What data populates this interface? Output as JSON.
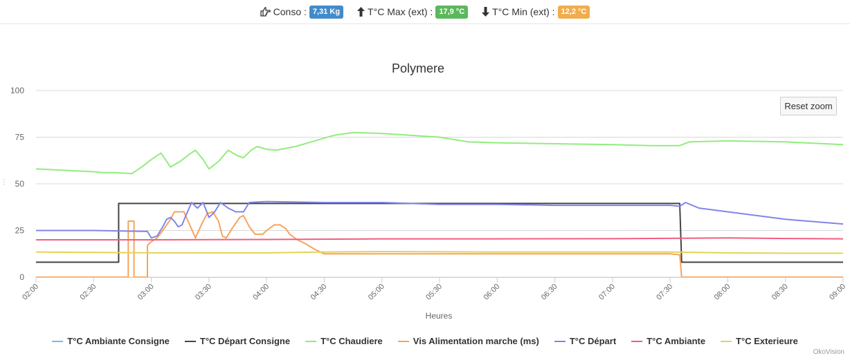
{
  "header": {
    "conso": {
      "label": "Conso :",
      "value": "7,31 Kg",
      "color": "#428bca",
      "icon": "hand-point-right-icon"
    },
    "tmax": {
      "label": "T°C Max (ext) :",
      "value": "17,9 °C",
      "color": "#5cb85c",
      "icon": "arrow-up-icon"
    },
    "tmin": {
      "label": "T°C Min (ext) :",
      "value": "12,2 °C",
      "color": "#f0ad4e",
      "icon": "arrow-down-icon"
    }
  },
  "reset_zoom_label": "Reset zoom",
  "credit": "OkoVision",
  "side_dots": "⋮",
  "chart_data": {
    "type": "line",
    "title": "Polymere",
    "xlabel": "Heures",
    "ylabel": "",
    "x_ticks": [
      "02:00",
      "02:30",
      "03:00",
      "03:30",
      "04:00",
      "04:30",
      "05:00",
      "05:30",
      "06:00",
      "06:30",
      "07:00",
      "07:30",
      "08:00",
      "08:30",
      "09:00"
    ],
    "y_ticks": [
      0,
      25,
      50,
      75,
      100
    ],
    "ylim": [
      0,
      100
    ],
    "grid": true,
    "legend_position": "bottom",
    "series": [
      {
        "name": "T°C Ambiante Consigne",
        "color": "#7cb5ec",
        "points": []
      },
      {
        "name": "T°C Départ Consigne",
        "color": "#434348",
        "points": [
          [
            "02:00",
            8
          ],
          [
            "02:43",
            8
          ],
          [
            "02:43",
            39.5
          ],
          [
            "07:35",
            39.5
          ],
          [
            "07:36",
            8
          ],
          [
            "09:00",
            8
          ]
        ]
      },
      {
        "name": "T°C Chaudiere",
        "color": "#90ed7d",
        "points": [
          [
            "02:00",
            58
          ],
          [
            "02:30",
            56.5
          ],
          [
            "02:35",
            56
          ],
          [
            "02:40",
            56
          ],
          [
            "02:50",
            55.5
          ],
          [
            "02:55",
            59
          ],
          [
            "03:00",
            63
          ],
          [
            "03:05",
            66.5
          ],
          [
            "03:08",
            62
          ],
          [
            "03:10",
            59
          ],
          [
            "03:15",
            62
          ],
          [
            "03:20",
            66
          ],
          [
            "03:23",
            68
          ],
          [
            "03:27",
            63
          ],
          [
            "03:30",
            58
          ],
          [
            "03:35",
            62
          ],
          [
            "03:40",
            68
          ],
          [
            "03:45",
            65
          ],
          [
            "03:48",
            64
          ],
          [
            "03:52",
            68
          ],
          [
            "03:55",
            70
          ],
          [
            "04:00",
            68.5
          ],
          [
            "04:05",
            68
          ],
          [
            "04:15",
            70
          ],
          [
            "04:25",
            73
          ],
          [
            "04:35",
            76
          ],
          [
            "04:45",
            77.5
          ],
          [
            "05:00",
            77
          ],
          [
            "05:30",
            75
          ],
          [
            "05:45",
            72.5
          ],
          [
            "06:00",
            72
          ],
          [
            "06:30",
            71.5
          ],
          [
            "07:00",
            71
          ],
          [
            "07:20",
            70.5
          ],
          [
            "07:35",
            70.5
          ],
          [
            "07:40",
            72.5
          ],
          [
            "08:00",
            73
          ],
          [
            "08:30",
            72.5
          ],
          [
            "09:00",
            71
          ]
        ]
      },
      {
        "name": "Vis Alimentation marche (ms)",
        "color": "#f7a35c",
        "points": [
          [
            "02:00",
            0
          ],
          [
            "02:48",
            0
          ],
          [
            "02:48",
            30
          ],
          [
            "02:51",
            30
          ],
          [
            "02:51",
            0
          ],
          [
            "02:58",
            0
          ],
          [
            "02:58",
            17
          ],
          [
            "03:00",
            19
          ],
          [
            "03:03",
            21
          ],
          [
            "03:06",
            25
          ],
          [
            "03:10",
            31
          ],
          [
            "03:12",
            35
          ],
          [
            "03:17",
            35
          ],
          [
            "03:20",
            28
          ],
          [
            "03:23",
            21
          ],
          [
            "03:26",
            28
          ],
          [
            "03:29",
            34
          ],
          [
            "03:32",
            35
          ],
          [
            "03:35",
            30
          ],
          [
            "03:37",
            22
          ],
          [
            "03:39",
            21
          ],
          [
            "03:42",
            26
          ],
          [
            "03:46",
            32
          ],
          [
            "03:48",
            33
          ],
          [
            "03:51",
            27
          ],
          [
            "03:54",
            23
          ],
          [
            "03:58",
            23
          ],
          [
            "04:00",
            25
          ],
          [
            "04:04",
            28
          ],
          [
            "04:07",
            28
          ],
          [
            "04:10",
            26
          ],
          [
            "04:12",
            23
          ],
          [
            "04:16",
            20
          ],
          [
            "04:20",
            18
          ],
          [
            "04:25",
            15
          ],
          [
            "04:30",
            12.5
          ],
          [
            "05:00",
            12.5
          ],
          [
            "05:30",
            12.5
          ],
          [
            "06:00",
            12.5
          ],
          [
            "06:30",
            12.5
          ],
          [
            "07:00",
            12.5
          ],
          [
            "07:30",
            12.5
          ],
          [
            "07:35",
            12
          ],
          [
            "07:36",
            0
          ],
          [
            "09:00",
            0
          ]
        ]
      },
      {
        "name": "T°C Départ",
        "color": "#8085e9",
        "points": [
          [
            "02:00",
            25
          ],
          [
            "02:30",
            25
          ],
          [
            "02:58",
            24.5
          ],
          [
            "03:00",
            21
          ],
          [
            "03:03",
            22
          ],
          [
            "03:06",
            27
          ],
          [
            "03:08",
            31
          ],
          [
            "03:10",
            32
          ],
          [
            "03:12",
            30
          ],
          [
            "03:14",
            27
          ],
          [
            "03:16",
            28
          ],
          [
            "03:18",
            33
          ],
          [
            "03:21",
            40
          ],
          [
            "03:24",
            37
          ],
          [
            "03:27",
            40
          ],
          [
            "03:30",
            32
          ],
          [
            "03:33",
            35
          ],
          [
            "03:36",
            40
          ],
          [
            "03:40",
            37
          ],
          [
            "03:44",
            35
          ],
          [
            "03:48",
            35
          ],
          [
            "03:51",
            40
          ],
          [
            "04:00",
            40.5
          ],
          [
            "04:30",
            40
          ],
          [
            "05:00",
            40
          ],
          [
            "05:30",
            39
          ],
          [
            "06:00",
            39
          ],
          [
            "06:30",
            38.5
          ],
          [
            "07:00",
            38.5
          ],
          [
            "07:30",
            38.5
          ],
          [
            "07:35",
            38
          ],
          [
            "07:38",
            40
          ],
          [
            "07:45",
            37
          ],
          [
            "08:00",
            35
          ],
          [
            "08:30",
            31
          ],
          [
            "09:00",
            28.5
          ]
        ]
      },
      {
        "name": "T°C Ambiante",
        "color": "#f15c80",
        "points": [
          [
            "02:00",
            20
          ],
          [
            "03:00",
            20
          ],
          [
            "04:00",
            20.2
          ],
          [
            "05:00",
            20.5
          ],
          [
            "06:00",
            20.5
          ],
          [
            "07:00",
            20.6
          ],
          [
            "07:35",
            20.8
          ],
          [
            "08:00",
            21
          ],
          [
            "08:30",
            20.7
          ],
          [
            "09:00",
            20.5
          ]
        ]
      },
      {
        "name": "T°C Exterieure",
        "color": "#e4d354",
        "points": [
          [
            "02:00",
            13.5
          ],
          [
            "03:00",
            13
          ],
          [
            "04:00",
            13
          ],
          [
            "04:30",
            13.5
          ],
          [
            "05:00",
            13.7
          ],
          [
            "06:00",
            13.5
          ],
          [
            "07:00",
            13.5
          ],
          [
            "07:30",
            13.5
          ],
          [
            "08:00",
            13
          ],
          [
            "08:30",
            12.8
          ],
          [
            "09:00",
            12.8
          ]
        ]
      }
    ]
  }
}
